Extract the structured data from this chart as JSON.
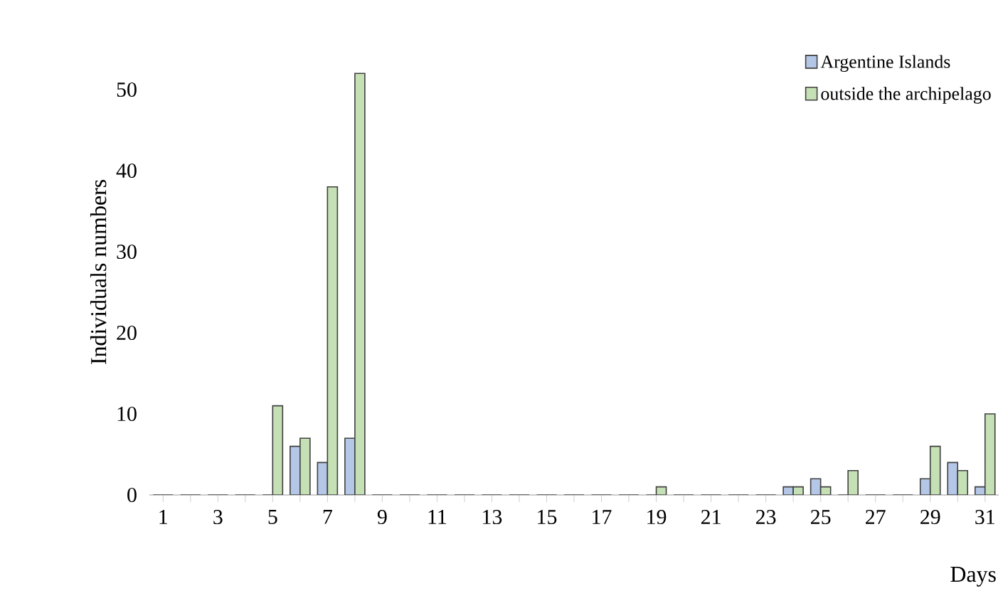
{
  "chart_data": {
    "type": "bar",
    "ylabel": "Individuals numbers",
    "xlabel": "Days",
    "categories": [
      "1",
      null,
      "3",
      null,
      "5",
      null,
      "7",
      null,
      "9",
      null,
      "11",
      null,
      "13",
      null,
      "15",
      null,
      "17",
      null,
      "19",
      null,
      "21",
      null,
      "23",
      null,
      "25",
      null,
      "27",
      null,
      "29",
      null,
      "31"
    ],
    "series": [
      {
        "name": "Argentine Islands",
        "color": "#b4c7e7",
        "values": [
          0,
          0,
          0,
          0,
          0,
          6,
          4,
          7,
          0,
          0,
          0,
          0,
          0,
          0,
          0,
          0,
          0,
          0,
          0,
          0,
          0,
          0,
          0,
          1,
          2,
          0,
          0,
          0,
          2,
          4,
          1
        ]
      },
      {
        "name": "outside the archipelago",
        "color": "#c5e0b4",
        "values": [
          0,
          0,
          0,
          0,
          11,
          7,
          38,
          52,
          0,
          0,
          0,
          0,
          0,
          0,
          0,
          0,
          0,
          0,
          1,
          0,
          0,
          0,
          0,
          1,
          1,
          3,
          0,
          0,
          6,
          3,
          10
        ]
      }
    ],
    "ylim": [
      0,
      55
    ],
    "yticks": [
      0,
      10,
      20,
      30,
      40,
      50
    ],
    "grid": false,
    "legend": "top right"
  }
}
